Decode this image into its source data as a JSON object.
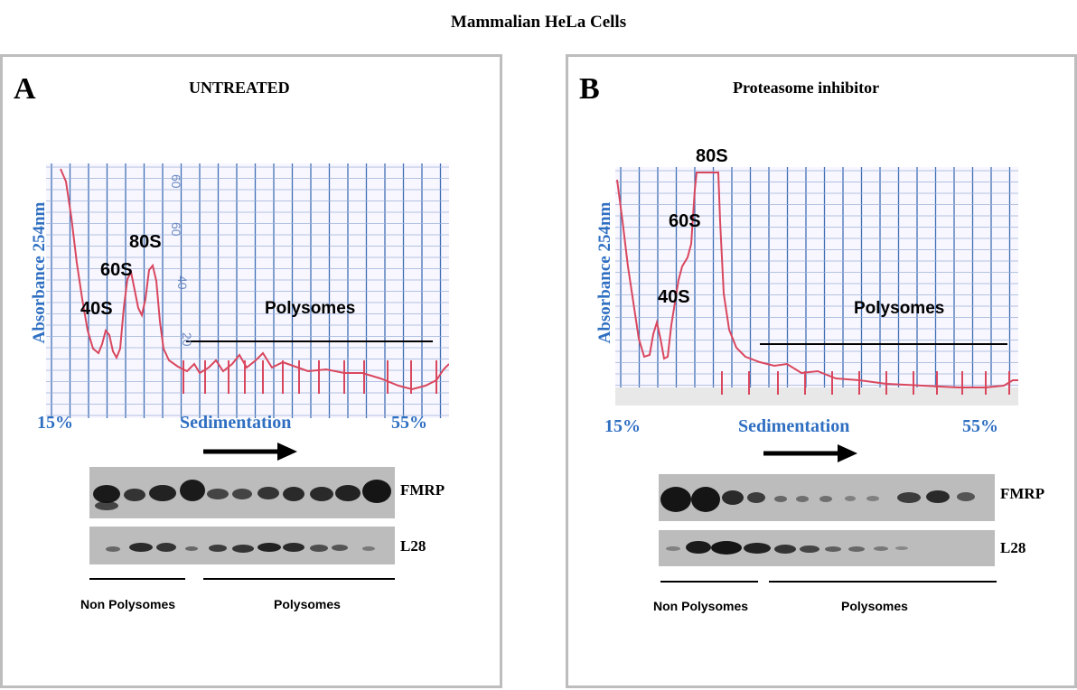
{
  "figure_title": "Mammalian   HeLa Cells",
  "panels": [
    {
      "letter": "A",
      "title": "UNTREATED",
      "y_axis_label": "Absorbance  254nm",
      "x_start": "15%",
      "x_end": "55%",
      "x_axis_label": "Sedimentation",
      "peaks": [
        "40S",
        "60S",
        "80S"
      ],
      "polysomes_label": "Polysomes",
      "grid_numbers": [
        "60",
        "40",
        "20"
      ],
      "blots": [
        "FMRP",
        "L28"
      ],
      "groups": [
        "Non Polysomes",
        "Polysomes"
      ]
    },
    {
      "letter": "B",
      "title": "Proteasome inhibitor",
      "y_axis_label": "Absorbance  254nm",
      "x_start": "15%",
      "x_end": "55%",
      "x_axis_label": "Sedimentation",
      "peaks": [
        "40S",
        "60S",
        "80S"
      ],
      "polysomes_label": "Polysomes",
      "blots": [
        "FMRP",
        "L28"
      ],
      "groups": [
        "Non Polysomes",
        "Polysomes"
      ]
    }
  ],
  "colors": {
    "trace": "#d9475e",
    "grid": "#3f6fb4",
    "axis_text": "#2f6fc2"
  }
}
